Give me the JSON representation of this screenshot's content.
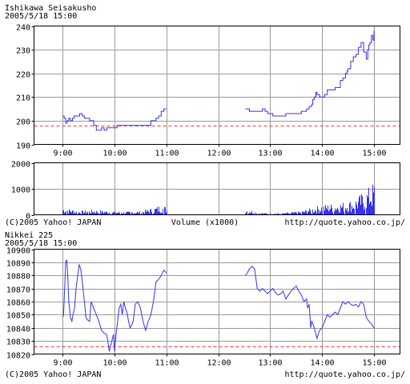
{
  "colors": {
    "series": "#3333ee",
    "reference": "#ff3333",
    "grid": "#9a9a9a",
    "frame": "#000000",
    "volume_bars": "#3333ee"
  },
  "chart_data": [
    {
      "type": "line",
      "title": "Ishikawa  Seisakusho",
      "subtitle": "2005/5/18 15:00",
      "ylim": [
        190,
        240
      ],
      "yticks": [
        "240",
        "230",
        "220",
        "210",
        "200",
        "190"
      ],
      "ytick_values": [
        240,
        230,
        220,
        210,
        200,
        190
      ],
      "xlim": [
        8.45,
        15.5
      ],
      "xticks": [
        "9:00",
        "10:00",
        "11:00",
        "12:00",
        "13:00",
        "14:00",
        "15:00"
      ],
      "xtick_values": [
        9,
        10,
        11,
        12,
        13,
        14,
        15
      ],
      "reference_value": 198,
      "grid": true,
      "step": true,
      "series": [
        {
          "x": [
            9.0,
            9.03,
            9.06,
            9.09,
            9.12,
            9.15,
            9.19,
            9.22,
            9.28,
            9.33,
            9.38,
            9.42,
            9.47,
            9.52,
            9.56,
            9.6,
            9.65,
            9.7,
            9.75,
            9.8,
            9.85,
            9.9,
            9.95,
            10.0,
            10.05,
            10.12,
            10.2,
            10.3,
            10.45,
            10.6,
            10.7,
            10.75,
            10.8,
            10.85,
            10.9,
            10.95,
            11.0
          ],
          "values": [
            202,
            201,
            199,
            200,
            201,
            200,
            201,
            202,
            202,
            203,
            202,
            201,
            201,
            200,
            200,
            198,
            196,
            196,
            197,
            196,
            197,
            197,
            197,
            197,
            198,
            198,
            198,
            198,
            198,
            198,
            200,
            200,
            201,
            202,
            204,
            205,
            205
          ]
        },
        {
          "x": [
            12.52,
            12.55,
            12.6,
            12.7,
            12.8,
            12.85,
            12.9,
            12.95,
            13.0,
            13.05,
            13.1,
            13.3,
            13.45,
            13.6,
            13.7,
            13.75,
            13.8,
            13.82,
            13.85,
            13.88,
            13.9,
            13.95,
            14.0,
            14.05,
            14.1,
            14.15,
            14.2,
            14.25,
            14.3,
            14.35,
            14.4,
            14.45,
            14.48,
            14.5,
            14.55,
            14.6,
            14.65,
            14.7,
            14.75,
            14.8,
            14.85,
            14.88,
            14.9,
            14.92,
            14.95,
            14.98,
            15.0
          ],
          "values": [
            205,
            205,
            204,
            204,
            204,
            205,
            204,
            203,
            203,
            202,
            202,
            203,
            203,
            204,
            205,
            206,
            207,
            209,
            210,
            212,
            211,
            210,
            210,
            211,
            213,
            213,
            213,
            214,
            214,
            217,
            218,
            220,
            221,
            222,
            225,
            227,
            228,
            231,
            233,
            229,
            226,
            230,
            232,
            233,
            236,
            234,
            238
          ]
        }
      ]
    },
    {
      "type": "bar",
      "title": "Volume (x1000)",
      "ylim": [
        0,
        2000
      ],
      "yticks": [
        "2000",
        "1000",
        "0"
      ],
      "ytick_values": [
        2000,
        1000,
        0
      ],
      "xlim": [
        8.45,
        15.5
      ],
      "xticks": [],
      "xtick_values": [
        9,
        10,
        11,
        12,
        13,
        14,
        15
      ],
      "grid": true,
      "sessions": [
        {
          "from": 9.0,
          "to": 11.0,
          "envelope_x": [
            9.0,
            9.3,
            9.6,
            9.9,
            10.2,
            10.5,
            10.7,
            10.9,
            11.0
          ],
          "envelope_values": [
            300,
            150,
            200,
            150,
            120,
            150,
            250,
            400,
            300
          ]
        },
        {
          "from": 12.52,
          "to": 15.0,
          "envelope_x": [
            12.52,
            12.8,
            13.2,
            13.6,
            14.0,
            14.3,
            14.6,
            14.8,
            15.0
          ],
          "envelope_values": [
            250,
            80,
            60,
            150,
            400,
            450,
            600,
            900,
            1300
          ]
        }
      ],
      "left_note": "(C)2005 Yahoo! JAPAN",
      "right_note": "http://quote.yahoo.co.jp/"
    },
    {
      "type": "line",
      "title": "Nikkei 225",
      "subtitle": "2005/5/18 15:00",
      "ylim": [
        10820,
        10900
      ],
      "yticks": [
        "10900",
        "10890",
        "10880",
        "10870",
        "10860",
        "10850",
        "10840",
        "10830",
        "10820"
      ],
      "ytick_values": [
        10900,
        10890,
        10880,
        10870,
        10860,
        10850,
        10840,
        10830,
        10820
      ],
      "xlim": [
        8.45,
        15.5
      ],
      "xticks": [
        "9:00",
        "10:00",
        "11:00",
        "12:00",
        "13:00",
        "14:00",
        "15:00"
      ],
      "xtick_values": [
        9,
        10,
        11,
        12,
        13,
        14,
        15
      ],
      "reference_value": 10826,
      "grid": true,
      "step": false,
      "series": [
        {
          "x": [
            9.0,
            9.02,
            9.04,
            9.06,
            9.08,
            9.1,
            9.12,
            9.15,
            9.18,
            9.2,
            9.23,
            9.26,
            9.29,
            9.32,
            9.35,
            9.38,
            9.42,
            9.45,
            9.48,
            9.52,
            9.55,
            9.6,
            9.65,
            9.7,
            9.75,
            9.8,
            9.85,
            9.9,
            9.95,
            9.98,
            10.0,
            10.03,
            10.06,
            10.09,
            10.12,
            10.15,
            10.18,
            10.21,
            10.24,
            10.27,
            10.3,
            10.33,
            10.36,
            10.4,
            10.45,
            10.5,
            10.55,
            10.6,
            10.65,
            10.7,
            10.75,
            10.8,
            10.85,
            10.9,
            10.95,
            11.0
          ],
          "values": [
            10848,
            10850,
            10870,
            10890,
            10892,
            10880,
            10860,
            10848,
            10845,
            10850,
            10855,
            10870,
            10880,
            10888,
            10885,
            10875,
            10860,
            10848,
            10846,
            10845,
            10860,
            10855,
            10850,
            10845,
            10838,
            10836,
            10835,
            10822,
            10830,
            10835,
            10822,
            10835,
            10845,
            10855,
            10858,
            10850,
            10860,
            10855,
            10852,
            10845,
            10840,
            10842,
            10845,
            10858,
            10860,
            10855,
            10845,
            10838,
            10845,
            10850,
            10860,
            10875,
            10877,
            10880,
            10884,
            10882
          ]
        },
        {
          "x": [
            12.52,
            12.56,
            12.6,
            12.65,
            12.7,
            12.75,
            12.8,
            12.85,
            12.9,
            12.95,
            13.0,
            13.05,
            13.1,
            13.15,
            13.2,
            13.25,
            13.3,
            13.35,
            13.4,
            13.45,
            13.5,
            13.55,
            13.6,
            13.65,
            13.7,
            13.72,
            13.75,
            13.78,
            13.8,
            13.85,
            13.9,
            13.95,
            14.0,
            14.05,
            14.1,
            14.15,
            14.2,
            14.25,
            14.3,
            14.35,
            14.4,
            14.45,
            14.5,
            14.55,
            14.6,
            14.65,
            14.7,
            14.75,
            14.8,
            14.85,
            14.9,
            14.95,
            15.0
          ],
          "values": [
            10880,
            10882,
            10885,
            10887,
            10885,
            10870,
            10868,
            10870,
            10868,
            10866,
            10868,
            10870,
            10867,
            10865,
            10866,
            10868,
            10862,
            10865,
            10868,
            10870,
            10872,
            10868,
            10865,
            10860,
            10862,
            10855,
            10858,
            10840,
            10845,
            10840,
            10832,
            10838,
            10840,
            10845,
            10850,
            10848,
            10850,
            10852,
            10850,
            10855,
            10860,
            10858,
            10860,
            10858,
            10857,
            10858,
            10856,
            10860,
            10858,
            10848,
            10845,
            10843,
            10840
          ]
        }
      ],
      "left_note": "(C)2005 Yahoo! JAPAN",
      "right_note": "http://quote.yahoo.co.jp/"
    }
  ]
}
